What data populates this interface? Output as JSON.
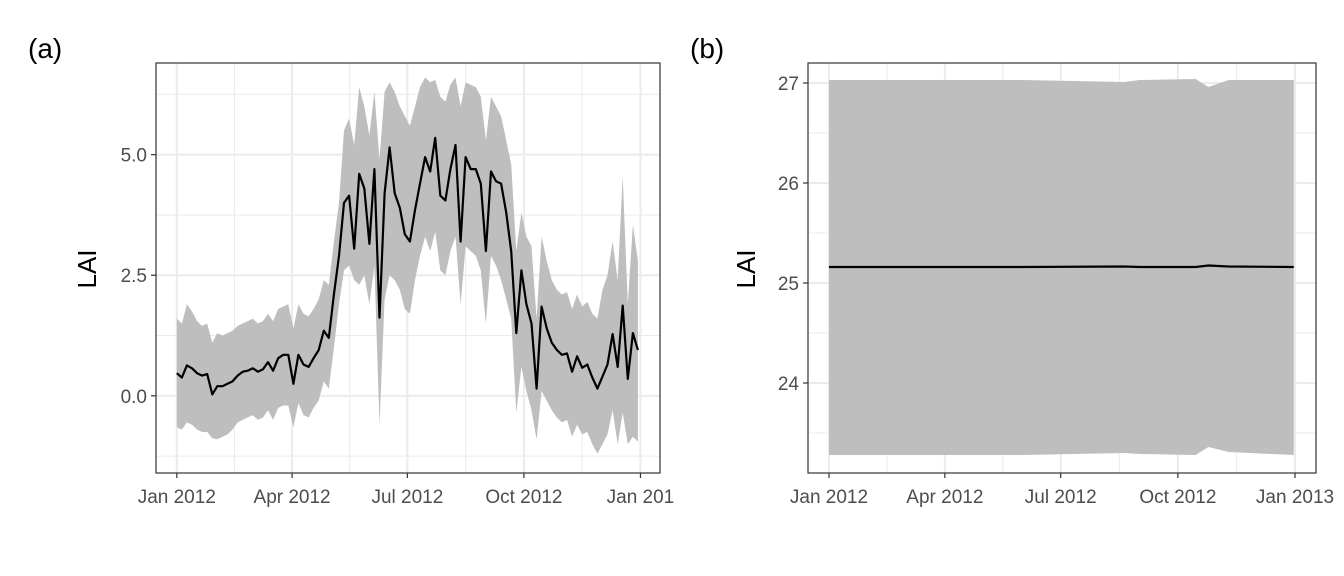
{
  "chart_data": [
    {
      "type": "area",
      "panel_label": "(a)",
      "xlabel": "",
      "ylabel": "LAI",
      "x_axis": "date",
      "xlim": [
        "2012-01-01",
        "2012-12-31"
      ],
      "ylim": [
        -1.6,
        6.9
      ],
      "yticks": [
        0.0,
        2.5,
        5.0
      ],
      "ytick_labels": [
        "0.0",
        "2.5",
        "5.0"
      ],
      "xticks": [
        "2012-01-01",
        "2012-04-01",
        "2012-07-01",
        "2012-10-01",
        "2013-01-01"
      ],
      "xtick_labels": [
        "Jan 2012",
        "Apr 2012",
        "Jul 2012",
        "Oct 2012",
        "Jan 201"
      ],
      "grid": true,
      "series": [
        {
          "role": "mean-line",
          "color": "#000000",
          "points": [
            [
              "2012-01-01",
              0.47
            ],
            [
              "2012-01-05",
              0.38
            ],
            [
              "2012-01-09",
              0.63
            ],
            [
              "2012-01-13",
              0.57
            ],
            [
              "2012-01-17",
              0.47
            ],
            [
              "2012-01-21",
              0.42
            ],
            [
              "2012-01-25",
              0.45
            ],
            [
              "2012-01-29",
              0.03
            ],
            [
              "2012-02-02",
              0.2
            ],
            [
              "2012-02-06",
              0.2
            ],
            [
              "2012-02-10",
              0.25
            ],
            [
              "2012-02-14",
              0.3
            ],
            [
              "2012-02-18",
              0.42
            ],
            [
              "2012-02-22",
              0.5
            ],
            [
              "2012-02-26",
              0.52
            ],
            [
              "2012-03-01",
              0.57
            ],
            [
              "2012-03-05",
              0.5
            ],
            [
              "2012-03-09",
              0.55
            ],
            [
              "2012-03-13",
              0.7
            ],
            [
              "2012-03-17",
              0.52
            ],
            [
              "2012-03-21",
              0.78
            ],
            [
              "2012-03-25",
              0.85
            ],
            [
              "2012-03-29",
              0.85
            ],
            [
              "2012-04-02",
              0.25
            ],
            [
              "2012-04-06",
              0.85
            ],
            [
              "2012-04-10",
              0.65
            ],
            [
              "2012-04-14",
              0.6
            ],
            [
              "2012-04-18",
              0.78
            ],
            [
              "2012-04-22",
              0.95
            ],
            [
              "2012-04-26",
              1.35
            ],
            [
              "2012-04-30",
              1.2
            ],
            [
              "2012-05-04",
              2.1
            ],
            [
              "2012-05-08",
              2.9
            ],
            [
              "2012-05-12",
              4.0
            ],
            [
              "2012-05-16",
              4.15
            ],
            [
              "2012-05-20",
              3.05
            ],
            [
              "2012-05-24",
              4.6
            ],
            [
              "2012-05-28",
              4.3
            ],
            [
              "2012-06-01",
              3.15
            ],
            [
              "2012-06-05",
              4.7
            ],
            [
              "2012-06-09",
              1.62
            ],
            [
              "2012-06-13",
              4.2
            ],
            [
              "2012-06-17",
              5.15
            ],
            [
              "2012-06-21",
              4.2
            ],
            [
              "2012-06-25",
              3.9
            ],
            [
              "2012-06-29",
              3.35
            ],
            [
              "2012-07-03",
              3.2
            ],
            [
              "2012-07-07",
              3.85
            ],
            [
              "2012-07-11",
              4.4
            ],
            [
              "2012-07-15",
              4.95
            ],
            [
              "2012-07-19",
              4.65
            ],
            [
              "2012-07-23",
              5.35
            ],
            [
              "2012-07-27",
              4.15
            ],
            [
              "2012-07-31",
              4.05
            ],
            [
              "2012-08-04",
              4.7
            ],
            [
              "2012-08-08",
              5.2
            ],
            [
              "2012-08-12",
              3.2
            ],
            [
              "2012-08-16",
              4.95
            ],
            [
              "2012-08-20",
              4.7
            ],
            [
              "2012-08-24",
              4.7
            ],
            [
              "2012-08-28",
              4.4
            ],
            [
              "2012-09-01",
              3.0
            ],
            [
              "2012-09-05",
              4.65
            ],
            [
              "2012-09-09",
              4.45
            ],
            [
              "2012-09-13",
              4.4
            ],
            [
              "2012-09-17",
              3.8
            ],
            [
              "2012-09-21",
              3.0
            ],
            [
              "2012-09-25",
              1.3
            ],
            [
              "2012-09-29",
              2.6
            ],
            [
              "2012-10-03",
              1.9
            ],
            [
              "2012-10-07",
              1.5
            ],
            [
              "2012-10-11",
              0.15
            ],
            [
              "2012-10-15",
              1.85
            ],
            [
              "2012-10-19",
              1.4
            ],
            [
              "2012-10-23",
              1.1
            ],
            [
              "2012-10-27",
              0.95
            ],
            [
              "2012-10-31",
              0.85
            ],
            [
              "2012-11-04",
              0.88
            ],
            [
              "2012-11-08",
              0.5
            ],
            [
              "2012-11-12",
              0.82
            ],
            [
              "2012-11-16",
              0.58
            ],
            [
              "2012-11-20",
              0.65
            ],
            [
              "2012-11-24",
              0.38
            ],
            [
              "2012-11-28",
              0.15
            ],
            [
              "2012-12-02",
              0.4
            ],
            [
              "2012-12-06",
              0.65
            ],
            [
              "2012-12-10",
              1.28
            ],
            [
              "2012-12-14",
              0.6
            ],
            [
              "2012-12-18",
              1.87
            ],
            [
              "2012-12-22",
              0.35
            ],
            [
              "2012-12-26",
              1.3
            ],
            [
              "2012-12-30",
              0.95
            ]
          ]
        },
        {
          "role": "uncertainty-band",
          "color": "#bebebe",
          "points": [
            [
              "2012-01-01",
              -0.65,
              1.6
            ],
            [
              "2012-01-05",
              -0.7,
              1.5
            ],
            [
              "2012-01-09",
              -0.55,
              1.9
            ],
            [
              "2012-01-13",
              -0.6,
              1.75
            ],
            [
              "2012-01-17",
              -0.7,
              1.55
            ],
            [
              "2012-01-21",
              -0.75,
              1.45
            ],
            [
              "2012-01-25",
              -0.75,
              1.5
            ],
            [
              "2012-01-29",
              -0.88,
              1.1
            ],
            [
              "2012-02-02",
              -0.9,
              1.3
            ],
            [
              "2012-02-06",
              -0.85,
              1.25
            ],
            [
              "2012-02-10",
              -0.8,
              1.3
            ],
            [
              "2012-02-14",
              -0.7,
              1.35
            ],
            [
              "2012-02-18",
              -0.55,
              1.45
            ],
            [
              "2012-02-22",
              -0.5,
              1.5
            ],
            [
              "2012-02-26",
              -0.45,
              1.55
            ],
            [
              "2012-03-01",
              -0.4,
              1.6
            ],
            [
              "2012-03-05",
              -0.5,
              1.5
            ],
            [
              "2012-03-09",
              -0.45,
              1.55
            ],
            [
              "2012-03-13",
              -0.3,
              1.7
            ],
            [
              "2012-03-17",
              -0.5,
              1.55
            ],
            [
              "2012-03-21",
              -0.25,
              1.8
            ],
            [
              "2012-03-25",
              -0.2,
              1.85
            ],
            [
              "2012-03-29",
              -0.2,
              1.9
            ],
            [
              "2012-04-02",
              -0.65,
              1.4
            ],
            [
              "2012-04-06",
              -0.15,
              1.9
            ],
            [
              "2012-04-10",
              -0.4,
              1.7
            ],
            [
              "2012-04-14",
              -0.45,
              1.65
            ],
            [
              "2012-04-18",
              -0.25,
              1.8
            ],
            [
              "2012-04-22",
              -0.1,
              2.0
            ],
            [
              "2012-04-26",
              0.3,
              2.4
            ],
            [
              "2012-04-30",
              0.15,
              2.3
            ],
            [
              "2012-05-04",
              1.0,
              3.2
            ],
            [
              "2012-05-08",
              1.9,
              4.0
            ],
            [
              "2012-05-12",
              2.6,
              5.5
            ],
            [
              "2012-05-16",
              2.7,
              5.75
            ],
            [
              "2012-05-20",
              2.4,
              5.2
            ],
            [
              "2012-05-24",
              2.3,
              6.4
            ],
            [
              "2012-05-28",
              2.5,
              6.0
            ],
            [
              "2012-06-01",
              1.9,
              5.4
            ],
            [
              "2012-06-05",
              2.7,
              6.3
            ],
            [
              "2012-06-09",
              -0.6,
              4.9
            ],
            [
              "2012-06-13",
              2.0,
              6.3
            ],
            [
              "2012-06-17",
              2.5,
              6.5
            ],
            [
              "2012-06-21",
              2.4,
              6.3
            ],
            [
              "2012-06-25",
              2.2,
              6.0
            ],
            [
              "2012-06-29",
              1.8,
              5.8
            ],
            [
              "2012-07-03",
              1.7,
              5.6
            ],
            [
              "2012-07-07",
              2.4,
              6.0
            ],
            [
              "2012-07-11",
              2.9,
              6.4
            ],
            [
              "2012-07-15",
              3.3,
              6.6
            ],
            [
              "2012-07-19",
              3.0,
              6.5
            ],
            [
              "2012-07-23",
              3.4,
              6.55
            ],
            [
              "2012-07-27",
              2.6,
              6.2
            ],
            [
              "2012-07-31",
              2.5,
              6.1
            ],
            [
              "2012-08-04",
              3.0,
              6.45
            ],
            [
              "2012-08-08",
              3.3,
              6.6
            ],
            [
              "2012-08-12",
              1.9,
              6.0
            ],
            [
              "2012-08-16",
              3.1,
              6.5
            ],
            [
              "2012-08-20",
              3.0,
              6.45
            ],
            [
              "2012-08-24",
              2.9,
              6.4
            ],
            [
              "2012-08-28",
              2.6,
              6.2
            ],
            [
              "2012-09-01",
              1.5,
              5.3
            ],
            [
              "2012-09-05",
              2.9,
              6.2
            ],
            [
              "2012-09-09",
              2.7,
              6.0
            ],
            [
              "2012-09-13",
              2.4,
              5.8
            ],
            [
              "2012-09-17",
              2.0,
              5.3
            ],
            [
              "2012-09-21",
              1.6,
              4.8
            ],
            [
              "2012-09-25",
              -0.35,
              3.0
            ],
            [
              "2012-09-29",
              0.6,
              3.8
            ],
            [
              "2012-10-03",
              0.1,
              3.3
            ],
            [
              "2012-10-07",
              -0.3,
              3.1
            ],
            [
              "2012-10-11",
              -0.9,
              1.6
            ],
            [
              "2012-10-15",
              0.1,
              3.3
            ],
            [
              "2012-10-19",
              -0.1,
              2.8
            ],
            [
              "2012-10-23",
              -0.3,
              2.4
            ],
            [
              "2012-10-27",
              -0.45,
              2.2
            ],
            [
              "2012-10-31",
              -0.55,
              2.1
            ],
            [
              "2012-11-04",
              -0.5,
              2.15
            ],
            [
              "2012-11-08",
              -0.85,
              1.8
            ],
            [
              "2012-11-12",
              -0.6,
              2.1
            ],
            [
              "2012-11-16",
              -0.8,
              1.85
            ],
            [
              "2012-11-20",
              -0.75,
              1.95
            ],
            [
              "2012-11-24",
              -1.0,
              1.7
            ],
            [
              "2012-11-28",
              -1.2,
              1.6
            ],
            [
              "2012-12-02",
              -1.0,
              2.2
            ],
            [
              "2012-12-06",
              -0.8,
              2.5
            ],
            [
              "2012-12-10",
              -0.3,
              3.2
            ],
            [
              "2012-12-14",
              -1.0,
              2.4
            ],
            [
              "2012-12-18",
              -0.35,
              4.55
            ],
            [
              "2012-12-22",
              -1.0,
              1.9
            ],
            [
              "2012-12-26",
              -0.85,
              3.55
            ],
            [
              "2012-12-30",
              -0.95,
              2.8
            ]
          ]
        }
      ]
    },
    {
      "type": "area",
      "panel_label": "(b)",
      "xlabel": "",
      "ylabel": "LAI",
      "x_axis": "date",
      "xlim": [
        "2012-01-01",
        "2013-01-01"
      ],
      "ylim": [
        23.1,
        27.2
      ],
      "yticks": [
        24,
        25,
        26,
        27
      ],
      "ytick_labels": [
        "24",
        "25",
        "26",
        "27"
      ],
      "xticks": [
        "2012-01-01",
        "2012-04-01",
        "2012-07-01",
        "2012-10-01",
        "2013-01-01"
      ],
      "xtick_labels": [
        "Jan 2012",
        "Apr 2012",
        "Jul 2012",
        "Oct 2012",
        "Jan 2013"
      ],
      "grid": true,
      "series": [
        {
          "role": "mean-line",
          "color": "#000000",
          "points": [
            [
              "2012-01-01",
              25.16
            ],
            [
              "2012-06-01",
              25.16
            ],
            [
              "2012-08-20",
              25.165
            ],
            [
              "2012-09-01",
              25.16
            ],
            [
              "2012-10-15",
              25.16
            ],
            [
              "2012-10-25",
              25.175
            ],
            [
              "2012-11-10",
              25.165
            ],
            [
              "2012-12-31",
              25.16
            ]
          ]
        },
        {
          "role": "uncertainty-band",
          "color": "#bebebe",
          "points": [
            [
              "2012-01-01",
              23.28,
              27.03
            ],
            [
              "2012-06-01",
              23.28,
              27.03
            ],
            [
              "2012-08-20",
              23.3,
              27.01
            ],
            [
              "2012-09-01",
              23.29,
              27.03
            ],
            [
              "2012-10-15",
              23.28,
              27.04
            ],
            [
              "2012-10-25",
              23.36,
              26.96
            ],
            [
              "2012-11-10",
              23.31,
              27.03
            ],
            [
              "2012-12-31",
              23.28,
              27.03
            ]
          ]
        }
      ]
    }
  ]
}
